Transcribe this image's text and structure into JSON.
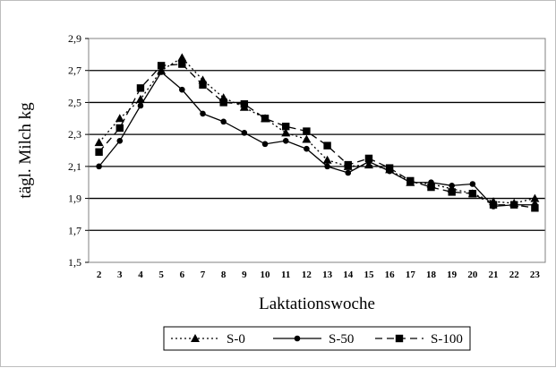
{
  "chart_data": {
    "type": "line",
    "xlabel": "Laktationswoche",
    "ylabel": "tägl. Milch kg",
    "categories": [
      2,
      3,
      4,
      5,
      6,
      7,
      8,
      9,
      10,
      11,
      12,
      13,
      14,
      15,
      16,
      17,
      18,
      19,
      20,
      21,
      22,
      23
    ],
    "ylim": [
      1.5,
      2.9
    ],
    "yticks": [
      "1,5",
      "1,7",
      "1,9",
      "2,1",
      "2,3",
      "2,5",
      "2,7",
      "2,9"
    ],
    "grid": "horizontal",
    "legend_position": "bottom",
    "series": [
      {
        "name": "S-0",
        "marker": "triangle",
        "line_style": "dotted",
        "values": [
          2.25,
          2.4,
          2.52,
          2.7,
          2.78,
          2.64,
          2.53,
          2.47,
          2.4,
          2.31,
          2.27,
          2.14,
          2.1,
          2.11,
          2.08,
          2.0,
          1.99,
          1.96,
          1.93,
          1.88,
          1.87,
          1.9
        ]
      },
      {
        "name": "S-50",
        "marker": "circle",
        "line_style": "solid",
        "values": [
          2.1,
          2.26,
          2.48,
          2.69,
          2.58,
          2.43,
          2.38,
          2.31,
          2.24,
          2.26,
          2.21,
          2.1,
          2.06,
          2.13,
          2.07,
          2.0,
          2.0,
          1.98,
          1.99,
          1.85,
          1.86,
          1.86
        ]
      },
      {
        "name": "S-100",
        "marker": "square",
        "line_style": "dashed",
        "values": [
          2.19,
          2.34,
          2.59,
          2.73,
          2.74,
          2.61,
          2.5,
          2.49,
          2.4,
          2.35,
          2.32,
          2.23,
          2.11,
          2.15,
          2.09,
          2.01,
          1.97,
          1.94,
          1.93,
          1.86,
          1.86,
          1.84
        ]
      }
    ]
  }
}
